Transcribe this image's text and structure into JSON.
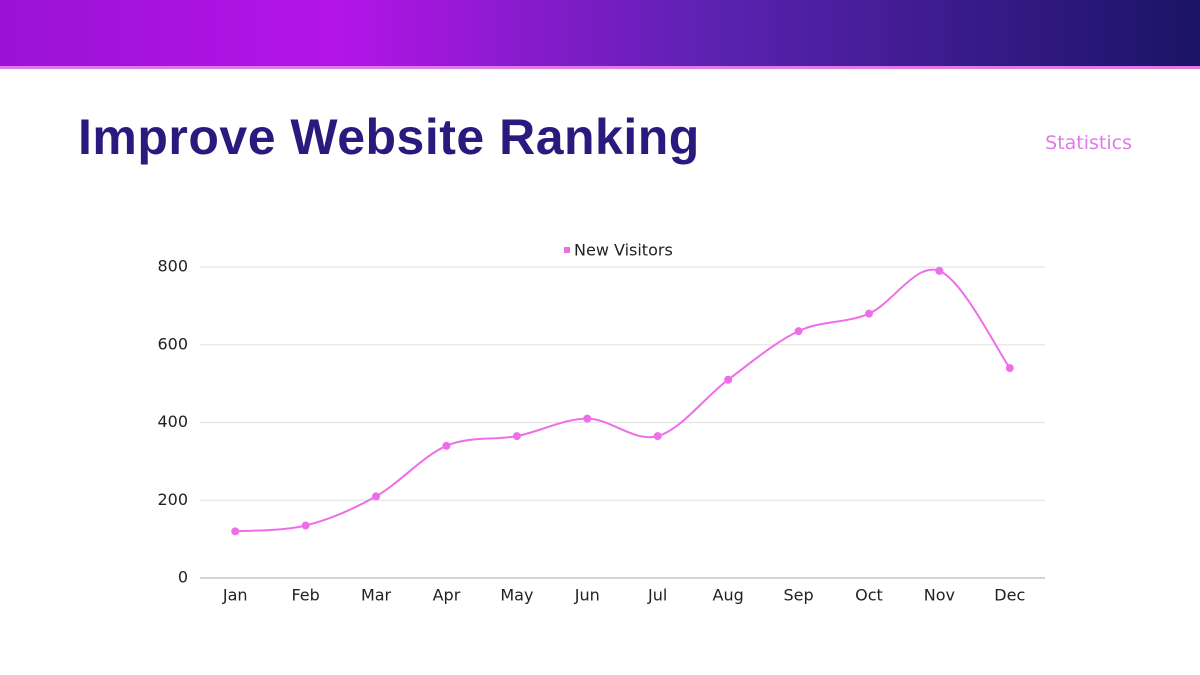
{
  "title": "Improve Website Ranking",
  "section_label": "Statistics",
  "chart_data": {
    "type": "line",
    "categories": [
      "Jan",
      "Feb",
      "Mar",
      "Apr",
      "May",
      "Jun",
      "Jul",
      "Aug",
      "Sep",
      "Oct",
      "Nov",
      "Dec"
    ],
    "series": [
      {
        "name": "New Visitors",
        "color": "#ee6ee8",
        "values": [
          120,
          135,
          210,
          340,
          365,
          410,
          365,
          510,
          635,
          680,
          790,
          540
        ]
      }
    ],
    "ylim": [
      0,
      800
    ],
    "yticks": [
      0,
      200,
      400,
      600,
      800
    ],
    "grid": true,
    "legend": "top",
    "smooth": true
  }
}
